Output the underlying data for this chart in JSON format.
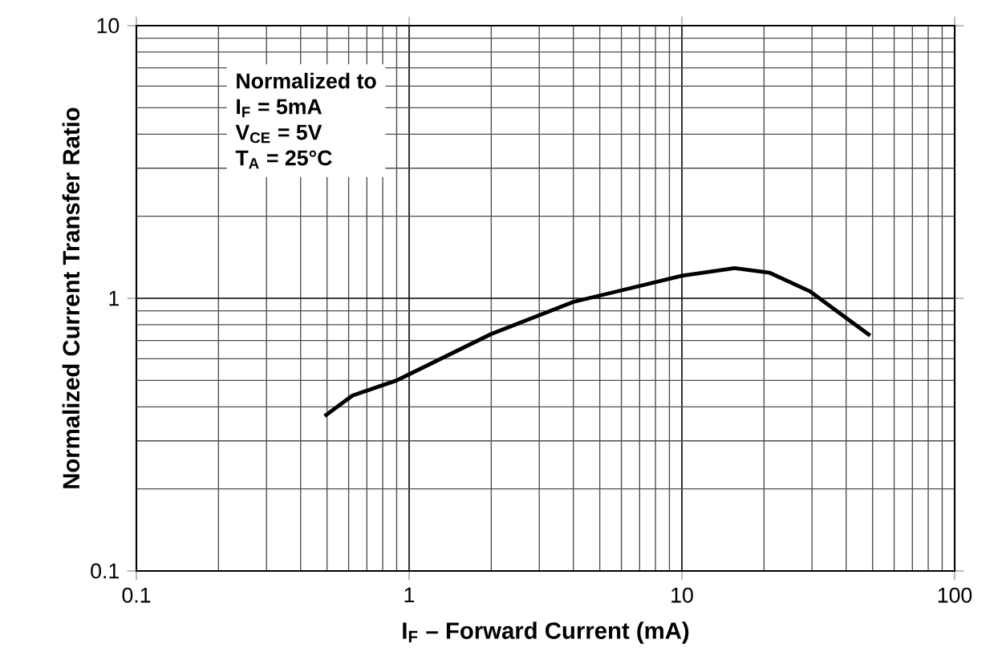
{
  "chart_data": {
    "type": "line",
    "log": "xy",
    "xlabel": "I$_{F}$ – Forward Current  (mA)",
    "ylabel": "Normalized Current Transfer Ratio",
    "annotations": [
      "Normalized to",
      "I$_{F}$ = 5mA",
      "V$_{CE}$ = 5V",
      "T$_{A}$ = 25°C"
    ],
    "xlim": [
      0.1,
      100
    ],
    "ylim": [
      0.1,
      10
    ],
    "xticks": [
      0.1,
      1,
      10,
      100
    ],
    "yticks": [
      0.1,
      1,
      10
    ],
    "grid": true,
    "series": [
      {
        "color": "#000000",
        "x": [
          0.49,
          0.62,
          0.9,
          2,
          4,
          10,
          15.6,
          21,
          29.5,
          49
        ],
        "values": [
          0.37,
          0.44,
          0.5,
          0.74,
          0.97,
          1.21,
          1.29,
          1.24,
          1.06,
          0.73
        ]
      }
    ]
  }
}
